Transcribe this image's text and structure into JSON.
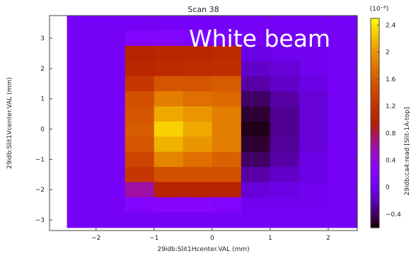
{
  "chart_data": {
    "type": "heatmap",
    "title": "Scan 38",
    "annotation": "White beam",
    "xlabel": "29idb:Slit1Hcenter.VAL (mm)",
    "ylabel": "29idb:Slit1Vcenter.VAL (mm)",
    "colorbar_label": "29idb:ca4:read [Slit-1A-top]",
    "colorbar_scale_label": "(10⁻⁶)",
    "colormap": "gnuplot",
    "clim": [
      -0.6,
      2.5
    ],
    "xlim": [
      -2.8,
      2.5
    ],
    "ylim": [
      -3.35,
      3.75
    ],
    "x_ticks": [
      -2,
      -1,
      0,
      1,
      2
    ],
    "y_ticks": [
      -3,
      -2,
      -1,
      0,
      1,
      2,
      3
    ],
    "colorbar_ticks": [
      -0.4,
      0,
      0.4,
      0.8,
      1.2,
      1.6,
      2,
      2.4
    ],
    "x_centers": [
      -2.25,
      -1.75,
      -1.25,
      -0.75,
      -0.25,
      0.25,
      0.75,
      1.25,
      1.75,
      2.25
    ],
    "y_centers": [
      3.5,
      3.0,
      2.5,
      2.0,
      1.5,
      1.0,
      0.5,
      0.0,
      -0.5,
      -1.0,
      -1.5,
      -2.0,
      -2.5,
      -3.0
    ],
    "values": [
      [
        0.05,
        0.05,
        0.05,
        0.05,
        0.05,
        0.05,
        0.05,
        0.05,
        0.05,
        0.05
      ],
      [
        0.05,
        0.05,
        0.2,
        0.22,
        0.15,
        0.1,
        0.05,
        0.05,
        0.05,
        0.05
      ],
      [
        0.05,
        0.05,
        1.0,
        1.05,
        1.05,
        1.1,
        -0.05,
        0.0,
        0.0,
        0.05
      ],
      [
        0.05,
        0.05,
        1.05,
        1.1,
        1.12,
        1.15,
        -0.15,
        -0.1,
        0.0,
        0.05
      ],
      [
        0.05,
        0.05,
        1.25,
        1.55,
        1.55,
        1.6,
        -0.25,
        -0.15,
        -0.05,
        0.05
      ],
      [
        0.05,
        0.05,
        1.5,
        1.85,
        1.75,
        1.7,
        -0.4,
        -0.25,
        -0.1,
        0.05
      ],
      [
        0.05,
        0.05,
        1.55,
        2.1,
        2.0,
        1.85,
        -0.5,
        -0.3,
        -0.1,
        0.05
      ],
      [
        0.05,
        0.05,
        1.6,
        2.3,
        2.1,
        1.85,
        -0.55,
        -0.3,
        -0.1,
        0.05
      ],
      [
        0.05,
        0.05,
        1.55,
        2.15,
        2.0,
        1.85,
        -0.5,
        -0.28,
        -0.1,
        0.05
      ],
      [
        0.05,
        0.05,
        1.4,
        1.9,
        1.75,
        1.65,
        -0.4,
        -0.25,
        -0.05,
        0.05
      ],
      [
        0.05,
        0.05,
        1.25,
        1.5,
        1.5,
        1.5,
        -0.25,
        -0.15,
        -0.05,
        0.05
      ],
      [
        0.05,
        0.05,
        0.6,
        1.0,
        1.0,
        1.0,
        -0.1,
        -0.05,
        0.0,
        0.05
      ],
      [
        0.05,
        0.05,
        0.2,
        0.25,
        0.25,
        0.2,
        0.0,
        0.0,
        0.0,
        0.05
      ],
      [
        0.05,
        0.05,
        0.05,
        0.05,
        0.05,
        0.05,
        0.05,
        0.05,
        0.05,
        0.05
      ]
    ]
  }
}
